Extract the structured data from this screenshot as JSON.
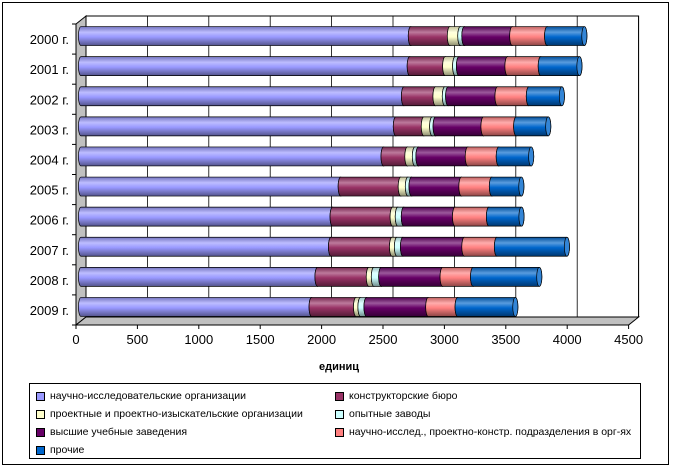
{
  "chart_data": {
    "type": "bar",
    "orientation": "horizontal",
    "stacked": true,
    "style": "3d-cylinder",
    "categories": [
      "2000 г.",
      "2001 г.",
      "2002 г.",
      "2003 г.",
      "2004 г.",
      "2005 г.",
      "2006 г.",
      "2007 г.",
      "2008 г.",
      "2009 г."
    ],
    "series": [
      {
        "name": "научно-исследовательские организации",
        "color": "#9999ff",
        "values": [
          2686,
          2677,
          2630,
          2564,
          2464,
          2115,
          2049,
          2036,
          1926,
          1878
        ]
      },
      {
        "name": "конструкторские бюро",
        "color": "#993366",
        "values": [
          318,
          289,
          257,
          228,
          194,
          489,
          489,
          497,
          418,
          362
        ]
      },
      {
        "name": "проектные и проектно-изыскательские организации",
        "color": "#ffffcc",
        "values": [
          85,
          81,
          76,
          68,
          61,
          58,
          42,
          40,
          41,
          36
        ]
      },
      {
        "name": "опытные заводы",
        "color": "#ccffff",
        "values": [
          33,
          31,
          27,
          28,
          29,
          30,
          49,
          49,
          60,
          49
        ]
      },
      {
        "name": "высшие учебные заведения",
        "color": "#660066",
        "values": [
          390,
          395,
          402,
          390,
          402,
          406,
          417,
          500,
          500,
          503
        ]
      },
      {
        "name": "научно-исслед., проектно-констр. подразделения в орг-ях",
        "color": "#ff8080",
        "values": [
          284,
          271,
          255,
          266,
          252,
          248,
          276,
          265,
          248,
          239
        ]
      },
      {
        "name": "прочие",
        "color": "#0066cc",
        "values": [
          303,
          315,
          269,
          261,
          264,
          240,
          265,
          570,
          539,
          470
        ]
      }
    ],
    "xlabel": "единиц",
    "ylabel": "",
    "xlim": [
      0,
      4500
    ],
    "xticks": [
      "0",
      "500",
      "1000",
      "1500",
      "2000",
      "2500",
      "3000",
      "3500",
      "4000",
      "4500"
    ],
    "grid": true,
    "legend_position": "bottom"
  }
}
